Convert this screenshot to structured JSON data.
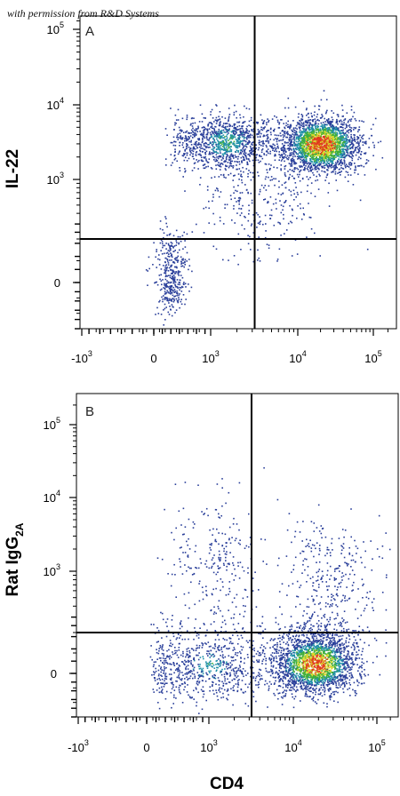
{
  "watermark": "with permission from R&D Systems",
  "colors": {
    "density_low": "#2a3f9a",
    "density_mid_low": "#1f8fa8",
    "density_mid": "#3fae3c",
    "density_high": "#d9d92a",
    "density_peak": "#e03a1e",
    "gate": "#000000",
    "frame": "#000000"
  },
  "chart_data": [
    {
      "type": "scatter",
      "panel_label": "A",
      "xlabel": "",
      "ylabel": "IL-22",
      "x_scale": "biexponential",
      "y_scale": "biexponential",
      "x_ticks": [
        {
          "base": "-10",
          "exp": "3",
          "value": -1000
        },
        {
          "base": "0",
          "exp": "",
          "value": 0
        },
        {
          "base": "10",
          "exp": "3",
          "value": 1000
        },
        {
          "base": "10",
          "exp": "4",
          "value": 10000
        },
        {
          "base": "10",
          "exp": "5",
          "value": 100000
        }
      ],
      "y_ticks": [
        {
          "base": "0",
          "exp": "",
          "value": 0
        },
        {
          "base": "10",
          "exp": "3",
          "value": 1000
        },
        {
          "base": "10",
          "exp": "4",
          "value": 10000
        },
        {
          "base": "10",
          "exp": "5",
          "value": 100000
        }
      ],
      "gate": {
        "x": 3200,
        "y": 200
      },
      "populations": [
        {
          "x": 20000,
          "y": 3000,
          "sx_decades": 0.25,
          "sy_decades": 0.18,
          "weight": 0.58
        },
        {
          "x": 1500,
          "y": 3200,
          "sx_decades": 0.3,
          "sy_decades": 0.18,
          "weight": 0.26
        },
        {
          "x": 300,
          "y": 15,
          "sx_decades": 0.35,
          "sy_decades": 0.3,
          "weight": 0.09
        },
        {
          "x": 4000,
          "y": 600,
          "sx_decades": 0.35,
          "sy_decades": 0.35,
          "weight": 0.07
        }
      ]
    },
    {
      "type": "scatter",
      "panel_label": "B",
      "xlabel": "CD4",
      "ylabel": "Rat IgG",
      "ylabel_subscript": "2A",
      "x_scale": "biexponential",
      "y_scale": "biexponential",
      "x_ticks": [
        {
          "base": "-10",
          "exp": "3",
          "value": -1000
        },
        {
          "base": "0",
          "exp": "",
          "value": 0
        },
        {
          "base": "10",
          "exp": "3",
          "value": 1000
        },
        {
          "base": "10",
          "exp": "4",
          "value": 10000
        },
        {
          "base": "10",
          "exp": "5",
          "value": 100000
        }
      ],
      "y_ticks": [
        {
          "base": "0",
          "exp": "",
          "value": 0
        },
        {
          "base": "10",
          "exp": "3",
          "value": 1000
        },
        {
          "base": "10",
          "exp": "4",
          "value": 10000
        },
        {
          "base": "10",
          "exp": "5",
          "value": 100000
        }
      ],
      "gate": {
        "x": 3200,
        "y": 200
      },
      "populations": [
        {
          "x": 18000,
          "y": 50,
          "sx_decades": 0.25,
          "sy_decades": 0.22,
          "weight": 0.6
        },
        {
          "x": 1000,
          "y": 40,
          "sx_decades": 0.45,
          "sy_decades": 0.25,
          "weight": 0.24
        },
        {
          "x": 1200,
          "y": 1500,
          "sx_decades": 0.25,
          "sy_decades": 0.45,
          "weight": 0.07
        },
        {
          "x": 25000,
          "y": 800,
          "sx_decades": 0.3,
          "sy_decades": 0.45,
          "weight": 0.09
        }
      ]
    }
  ]
}
